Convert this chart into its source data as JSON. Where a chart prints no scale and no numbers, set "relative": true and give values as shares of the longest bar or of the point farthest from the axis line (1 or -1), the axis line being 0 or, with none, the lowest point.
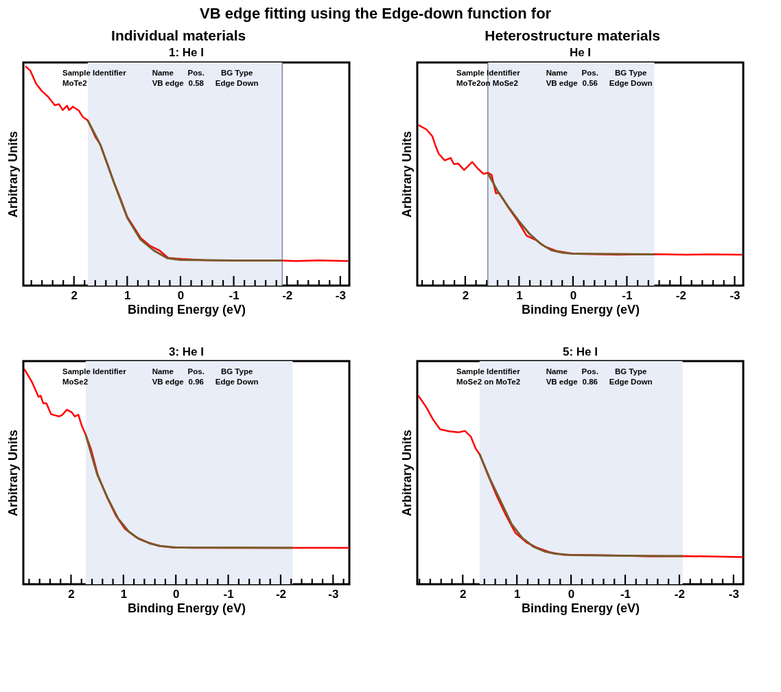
{
  "chart_data": [
    {
      "type": "line",
      "title": "1: He I",
      "xlabel": "Binding Energy (eV)",
      "ylabel": "Arbitrary Units",
      "relative": true,
      "tick_labels": "x",
      "grid": false,
      "legend": false,
      "marker": "none",
      "line_style": "solid",
      "annotations": [
        "Sample Identifier",
        "Name",
        "Pos.",
        "BG Type",
        "MoTe2",
        "VB edge",
        "0.58",
        "Edge Down",
        "Individual materials",
        "VB edge fitting using the Edge-down function for"
      ],
      "xlim": [
        2.95,
        -3.17
      ],
      "xticks": [
        {
          "value": 2.8,
          "label": null
        },
        {
          "value": 2.6,
          "label": null
        },
        {
          "value": 2.4,
          "label": null
        },
        {
          "value": 2.2,
          "label": null
        },
        2,
        {
          "value": 1.8,
          "label": null
        },
        {
          "value": 1.6,
          "label": null
        },
        {
          "value": 1.4,
          "label": null
        },
        {
          "value": 1.2,
          "label": null
        },
        1,
        {
          "value": 0.8,
          "label": null
        },
        {
          "value": 0.6,
          "label": null
        },
        {
          "value": 0.4,
          "label": null
        },
        {
          "value": 0.2,
          "label": null
        },
        0,
        {
          "value": -0.2,
          "label": null
        },
        {
          "value": -0.4,
          "label": null
        },
        {
          "value": -0.6,
          "label": null
        },
        {
          "value": -0.8,
          "label": null
        },
        -1,
        {
          "value": -1.2,
          "label": null
        },
        {
          "value": -1.4,
          "label": null
        },
        {
          "value": -1.6,
          "label": null
        },
        {
          "value": -1.8,
          "label": null
        },
        -2,
        {
          "value": -2.2,
          "label": null
        },
        {
          "value": -2.4,
          "label": null
        },
        {
          "value": -2.6,
          "label": null
        },
        {
          "value": -2.8,
          "label": null
        },
        -3
      ],
      "bands": [
        {
          "axis": "x",
          "from": 1.74,
          "to": -1.91,
          "color": "#e8edf7"
        }
      ],
      "ref_lines": [
        {
          "axis": "x",
          "value": -1.91,
          "color": "#5f6b80"
        }
      ],
      "series": [
        {
          "type": "line",
          "color": "#ff0000",
          "x": [
            2.91,
            2.82,
            2.71,
            2.6,
            2.49,
            2.36,
            2.28,
            2.21,
            2.13,
            2.09,
            2.02,
            1.91,
            1.83,
            1.74,
            1.59,
            1.51,
            1.38,
            1.25,
            1.12,
            1.0,
            0.87,
            0.74,
            0.57,
            0.4,
            0.23,
            -0.03,
            -0.46,
            -0.88,
            -1.31,
            -1.9,
            -2.17,
            -2.59,
            -3.15
          ],
          "values": [
            1.0,
            0.98,
            0.92,
            0.886,
            0.862,
            0.822,
            0.827,
            0.8,
            0.82,
            0.8,
            0.815,
            0.798,
            0.768,
            0.753,
            0.674,
            0.645,
            0.56,
            0.472,
            0.393,
            0.314,
            0.265,
            0.215,
            0.181,
            0.161,
            0.126,
            0.121,
            0.116,
            0.115,
            0.114,
            0.114,
            0.112,
            0.115,
            0.112
          ]
        },
        {
          "type": "line",
          "color": "#7a5a2c",
          "x": [
            1.74,
            1.5,
            1.25,
            1.0,
            0.75,
            0.5,
            0.25,
            0.0,
            -1.0,
            -1.9
          ],
          "values": [
            0.753,
            0.64,
            0.47,
            0.31,
            0.21,
            0.16,
            0.125,
            0.117,
            0.114,
            0.114
          ]
        }
      ]
    },
    {
      "type": "line",
      "title": "He I",
      "xlabel": "Binding Energy (eV)",
      "ylabel": "Arbitrary Units",
      "relative": true,
      "tick_labels": "x",
      "grid": false,
      "legend": false,
      "marker": "none",
      "line_style": "solid",
      "annotations": [
        "Sample Identifier",
        "Name",
        "Pos.",
        "BG Type",
        "MoTe2on MoSe2",
        "VB edge",
        "0.56",
        "Edge Down",
        "Heterostructure materials"
      ],
      "xlim": [
        2.89,
        -3.16
      ],
      "xticks": [
        {
          "value": 2.8,
          "label": null
        },
        {
          "value": 2.6,
          "label": null
        },
        {
          "value": 2.4,
          "label": null
        },
        {
          "value": 2.2,
          "label": null
        },
        2,
        {
          "value": 1.8,
          "label": null
        },
        {
          "value": 1.6,
          "label": null
        },
        {
          "value": 1.4,
          "label": null
        },
        {
          "value": 1.2,
          "label": null
        },
        1,
        {
          "value": 0.8,
          "label": null
        },
        {
          "value": 0.6,
          "label": null
        },
        {
          "value": 0.4,
          "label": null
        },
        {
          "value": 0.2,
          "label": null
        },
        0,
        {
          "value": -0.2,
          "label": null
        },
        {
          "value": -0.4,
          "label": null
        },
        {
          "value": -0.6,
          "label": null
        },
        {
          "value": -0.8,
          "label": null
        },
        -1,
        {
          "value": -1.2,
          "label": null
        },
        {
          "value": -1.4,
          "label": null
        },
        {
          "value": -1.6,
          "label": null
        },
        {
          "value": -1.8,
          "label": null
        },
        -2,
        {
          "value": -2.2,
          "label": null
        },
        {
          "value": -2.4,
          "label": null
        },
        {
          "value": -2.6,
          "label": null
        },
        {
          "value": -2.8,
          "label": null
        },
        -3
      ],
      "bands": [
        {
          "axis": "x",
          "from": 1.58,
          "to": -1.51,
          "color": "#e8edf7"
        }
      ],
      "ref_lines": [
        {
          "axis": "x",
          "value": 1.58,
          "color": "#5f6b80"
        }
      ],
      "series": [
        {
          "type": "line",
          "color": "#ff0000",
          "x": [
            2.87,
            2.72,
            2.61,
            2.55,
            2.49,
            2.38,
            2.27,
            2.21,
            2.13,
            2.02,
            1.87,
            1.77,
            1.66,
            1.58,
            1.51,
            1.43,
            1.37,
            1.2,
            1.03,
            0.86,
            0.69,
            0.52,
            0.31,
            0.01,
            -0.41,
            -0.83,
            -1.51,
            -2.1,
            -2.52,
            -3.14
          ],
          "values": [
            1.0,
            0.973,
            0.93,
            0.87,
            0.82,
            0.78,
            0.795,
            0.757,
            0.76,
            0.72,
            0.77,
            0.73,
            0.696,
            0.703,
            0.689,
            0.574,
            0.578,
            0.486,
            0.405,
            0.311,
            0.284,
            0.243,
            0.216,
            0.199,
            0.196,
            0.192,
            0.196,
            0.192,
            0.195,
            0.192
          ]
        },
        {
          "type": "line",
          "color": "#7a5a2c",
          "x": [
            1.58,
            1.4,
            1.2,
            1.0,
            0.8,
            0.6,
            0.4,
            0.2,
            0.0,
            -1.51
          ],
          "values": [
            0.7,
            0.59,
            0.49,
            0.4,
            0.32,
            0.26,
            0.22,
            0.205,
            0.199,
            0.195
          ]
        }
      ]
    },
    {
      "type": "line",
      "title": "3: He I",
      "xlabel": "Binding Energy (eV)",
      "ylabel": "Arbitrary Units",
      "relative": true,
      "tick_labels": "x",
      "grid": false,
      "legend": false,
      "marker": "none",
      "line_style": "solid",
      "annotations": [
        "Sample Identifier",
        "Name",
        "Pos.",
        "BG Type",
        "MoSe2",
        "VB edge",
        "0.96",
        "Edge Down"
      ],
      "xlim": [
        2.91,
        -3.31
      ],
      "xticks": [
        {
          "value": 2.8,
          "label": null
        },
        {
          "value": 2.6,
          "label": null
        },
        {
          "value": 2.4,
          "label": null
        },
        {
          "value": 2.2,
          "label": null
        },
        2,
        {
          "value": 1.8,
          "label": null
        },
        {
          "value": 1.6,
          "label": null
        },
        {
          "value": 1.4,
          "label": null
        },
        {
          "value": 1.2,
          "label": null
        },
        1,
        {
          "value": 0.8,
          "label": null
        },
        {
          "value": 0.6,
          "label": null
        },
        {
          "value": 0.4,
          "label": null
        },
        {
          "value": 0.2,
          "label": null
        },
        0,
        {
          "value": -0.2,
          "label": null
        },
        {
          "value": -0.4,
          "label": null
        },
        {
          "value": -0.6,
          "label": null
        },
        {
          "value": -0.8,
          "label": null
        },
        -1,
        {
          "value": -1.2,
          "label": null
        },
        {
          "value": -1.4,
          "label": null
        },
        {
          "value": -1.6,
          "label": null
        },
        {
          "value": -1.8,
          "label": null
        },
        -2,
        {
          "value": -2.2,
          "label": null
        },
        {
          "value": -2.4,
          "label": null
        },
        {
          "value": -2.6,
          "label": null
        },
        {
          "value": -2.8,
          "label": null
        },
        -3,
        {
          "value": -3.2,
          "label": null
        }
      ],
      "bands": [
        {
          "axis": "x",
          "from": 1.72,
          "to": -2.23,
          "color": "#e8edf7"
        }
      ],
      "series": [
        {
          "type": "line",
          "color": "#ff0000",
          "x": [
            2.89,
            2.75,
            2.62,
            2.58,
            2.53,
            2.47,
            2.38,
            2.23,
            2.17,
            2.08,
            1.99,
            1.93,
            1.86,
            1.8,
            1.72,
            1.62,
            1.49,
            1.32,
            1.14,
            0.97,
            0.75,
            0.53,
            0.32,
            0.06,
            -0.33,
            -0.99,
            -2.23,
            -3.31
          ],
          "values": [
            1.0,
            0.942,
            0.871,
            0.876,
            0.841,
            0.841,
            0.79,
            0.78,
            0.786,
            0.811,
            0.8,
            0.78,
            0.788,
            0.74,
            0.695,
            0.629,
            0.509,
            0.408,
            0.317,
            0.257,
            0.217,
            0.194,
            0.178,
            0.171,
            0.169,
            0.169,
            0.169,
            0.169
          ]
        },
        {
          "type": "line",
          "color": "#7a5a2c",
          "x": [
            1.72,
            1.5,
            1.3,
            1.1,
            0.9,
            0.7,
            0.5,
            0.3,
            0.0,
            -2.23
          ],
          "values": [
            0.695,
            0.51,
            0.4,
            0.305,
            0.245,
            0.21,
            0.19,
            0.178,
            0.171,
            0.169
          ]
        }
      ]
    },
    {
      "type": "line",
      "title": "5: He I",
      "xlabel": "Binding Energy (eV)",
      "ylabel": "Arbitrary Units",
      "relative": true,
      "tick_labels": "x",
      "grid": false,
      "legend": false,
      "marker": "none",
      "line_style": "solid",
      "annotations": [
        "Sample Identifier",
        "Name",
        "Pos.",
        "BG Type",
        "MoSe2 on MoTe2",
        "VB edge",
        "0.86",
        "Edge Down"
      ],
      "xlim": [
        2.84,
        -3.18
      ],
      "xticks": [
        {
          "value": 2.8,
          "label": null
        },
        {
          "value": 2.6,
          "label": null
        },
        {
          "value": 2.4,
          "label": null
        },
        {
          "value": 2.2,
          "label": null
        },
        2,
        {
          "value": 1.8,
          "label": null
        },
        {
          "value": 1.6,
          "label": null
        },
        {
          "value": 1.4,
          "label": null
        },
        {
          "value": 1.2,
          "label": null
        },
        1,
        {
          "value": 0.8,
          "label": null
        },
        {
          "value": 0.6,
          "label": null
        },
        {
          "value": 0.4,
          "label": null
        },
        {
          "value": 0.2,
          "label": null
        },
        0,
        {
          "value": -0.2,
          "label": null
        },
        {
          "value": -0.4,
          "label": null
        },
        {
          "value": -0.6,
          "label": null
        },
        {
          "value": -0.8,
          "label": null
        },
        -1,
        {
          "value": -1.2,
          "label": null
        },
        {
          "value": -1.4,
          "label": null
        },
        {
          "value": -1.6,
          "label": null
        },
        {
          "value": -1.8,
          "label": null
        },
        -2,
        {
          "value": -2.2,
          "label": null
        },
        {
          "value": -2.4,
          "label": null
        },
        {
          "value": -2.6,
          "label": null
        },
        {
          "value": -2.8,
          "label": null
        },
        -3
      ],
      "bands": [
        {
          "axis": "x",
          "from": 1.69,
          "to": -2.06,
          "color": "#e8edf7"
        }
      ],
      "series": [
        {
          "type": "line",
          "color": "#ff0000",
          "x": [
            2.82,
            2.67,
            2.55,
            2.42,
            2.25,
            2.08,
            1.96,
            1.85,
            1.76,
            1.68,
            1.54,
            1.37,
            1.2,
            1.03,
            0.82,
            0.61,
            0.4,
            0.15,
            -0.23,
            -0.86,
            -1.49,
            -2.06,
            -2.55,
            -3.18
          ],
          "values": [
            1.0,
            0.937,
            0.874,
            0.822,
            0.811,
            0.805,
            0.813,
            0.782,
            0.719,
            0.685,
            0.582,
            0.467,
            0.364,
            0.273,
            0.221,
            0.192,
            0.17,
            0.156,
            0.156,
            0.152,
            0.147,
            0.149,
            0.147,
            0.144
          ]
        },
        {
          "type": "line",
          "color": "#7a5a2c",
          "x": [
            1.69,
            1.5,
            1.3,
            1.1,
            0.9,
            0.7,
            0.5,
            0.3,
            0.0,
            -1.0,
            -2.06
          ],
          "values": [
            0.69,
            0.56,
            0.44,
            0.32,
            0.245,
            0.2,
            0.175,
            0.162,
            0.155,
            0.151,
            0.149
          ]
        }
      ]
    }
  ]
}
